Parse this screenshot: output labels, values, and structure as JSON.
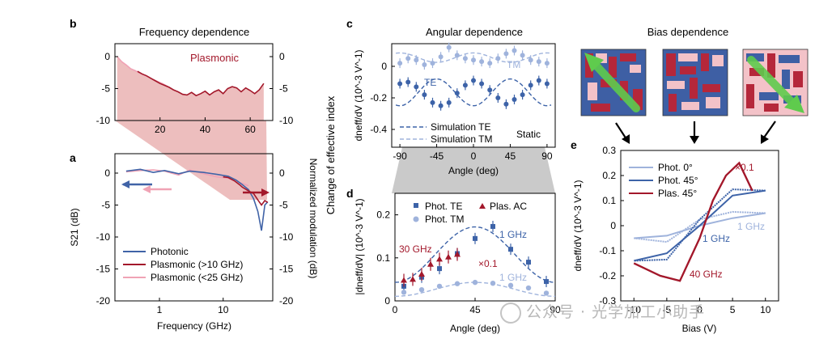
{
  "colors": {
    "photonic": "#4063a7",
    "plasmonic": "#a3182b",
    "plasmonic_light": "#f0a3b5",
    "te": "#3d63a8",
    "tm": "#9fb3dc",
    "shade": "#e7a8a8",
    "axis": "#000000"
  },
  "watermark": "公众号 · 光学加工小助手",
  "chart_data": [
    {
      "id": "b",
      "type": "line",
      "panel_label": "b",
      "title": "Frequency dependence",
      "xlim": [
        0,
        70
      ],
      "xticks": [
        20,
        40,
        60
      ],
      "ylim": [
        -10,
        0
      ],
      "yticks": [
        0,
        -5,
        -10
      ],
      "right_yticks": [
        0,
        -5,
        -10
      ],
      "annotation": "Plasmonic",
      "series": [
        {
          "name": "Plasmonic (<25 GHz)",
          "x": [
            1,
            3,
            5,
            7,
            9,
            11,
            13,
            15,
            17,
            19,
            21,
            23,
            25
          ],
          "values": [
            0,
            -0.8,
            -1.3,
            -1.9,
            -2.2,
            -2.6,
            -2.9,
            -3.2,
            -3.6,
            -3.9,
            -4.2,
            -4.6,
            -5.0
          ]
        },
        {
          "name": "Plasmonic (>10 GHz)",
          "x": [
            10,
            12,
            14,
            16,
            18,
            20,
            22,
            24,
            26,
            28,
            30,
            32,
            34,
            36,
            38,
            40,
            42,
            44,
            46,
            48,
            50,
            52,
            54,
            56,
            58,
            60,
            62,
            64,
            66
          ],
          "values": [
            -2.3,
            -2.7,
            -3.0,
            -3.4,
            -3.8,
            -4.2,
            -4.5,
            -4.8,
            -5.2,
            -5.5,
            -5.9,
            -6.0,
            -5.6,
            -6.1,
            -5.8,
            -5.4,
            -6.0,
            -5.5,
            -5.2,
            -5.8,
            -5.0,
            -4.7,
            -4.9,
            -5.5,
            -4.9,
            -5.3,
            -5.8,
            -5.2,
            -4.2
          ]
        }
      ]
    },
    {
      "id": "a",
      "type": "line",
      "panel_label": "a",
      "xscale": "log",
      "xlim": [
        0.2,
        60
      ],
      "xticks": [
        1,
        10
      ],
      "xlabel": "Frequency (GHz)",
      "ylabel": "S21 (dB)",
      "right_ylabel": "Normalized modulation (dB)",
      "ylim": [
        -20,
        3
      ],
      "yticks": [
        0,
        -5,
        -10,
        -15,
        -20
      ],
      "right_yticks": [
        0,
        -5,
        -10,
        -15,
        -20
      ],
      "series": [
        {
          "name": "Photonic",
          "x": [
            0.3,
            0.5,
            0.8,
            1.2,
            2,
            3,
            5,
            8,
            12,
            16,
            20,
            25,
            30,
            35,
            40,
            45,
            50
          ],
          "values": [
            0.3,
            0.6,
            0.1,
            0.4,
            -0.1,
            0.3,
            0.1,
            -0.2,
            -0.5,
            -1.1,
            -1.8,
            -2.6,
            -4.0,
            -6.0,
            -9.0,
            -5.0,
            -4.5
          ]
        },
        {
          "name": "Plasmonic (>10 GHz)",
          "x": [
            10,
            12,
            15,
            18,
            20,
            25,
            30,
            35,
            40,
            45,
            50
          ],
          "values": [
            -0.6,
            -0.7,
            -1.2,
            -1.8,
            -2.2,
            -2.8,
            -3.2,
            -4.2,
            -5.0,
            -4.3,
            -4.6
          ]
        },
        {
          "name": "Plasmonic (<25 GHz)",
          "x": [
            0.3,
            0.5,
            0.8,
            1.2,
            2,
            3,
            5,
            8,
            12,
            16,
            20,
            25
          ],
          "values": [
            0.2,
            0.4,
            0.5,
            0.3,
            -0.3,
            0.5,
            -0.1,
            -0.6,
            -0.8,
            -1.3,
            -1.6,
            -2.0
          ]
        }
      ],
      "legend": {
        "placement": "bottom-left",
        "entries": [
          "Photonic",
          "Plasmonic (>10 GHz)",
          "Plasmonic (<25 GHz)"
        ]
      }
    },
    {
      "id": "c",
      "type": "scatter",
      "panel_label": "c",
      "title": "Angular dependence",
      "xlabel": "Angle (deg)",
      "ylabel": "dneff/dV (10^-3 V^-1)",
      "shared_ylabel": "Change of effective index",
      "xlim": [
        -100,
        100
      ],
      "xticks": [
        -90,
        -45,
        0,
        45,
        90
      ],
      "ylim": [
        -0.48,
        0.17
      ],
      "yticks": [
        0,
        -0.2,
        -0.4
      ],
      "labels": [
        "TE",
        "TM",
        "Static"
      ],
      "series": [
        {
          "name": "TE",
          "x": [
            -90,
            -80,
            -70,
            -60,
            -50,
            -40,
            -30,
            -20,
            -10,
            0,
            10,
            20,
            30,
            40,
            50,
            60,
            70,
            80,
            90
          ],
          "values": [
            -0.11,
            -0.1,
            -0.13,
            -0.18,
            -0.23,
            -0.25,
            -0.23,
            -0.17,
            -0.12,
            -0.09,
            -0.11,
            -0.15,
            -0.2,
            -0.24,
            -0.21,
            -0.18,
            -0.12,
            -0.09,
            -0.11
          ]
        },
        {
          "name": "TM",
          "x": [
            -90,
            -80,
            -70,
            -60,
            -50,
            -40,
            -30,
            -20,
            -10,
            0,
            10,
            20,
            30,
            40,
            50,
            60,
            70,
            80,
            90
          ],
          "values": [
            0.02,
            0.05,
            0.04,
            0.01,
            0.02,
            0.06,
            0.12,
            0.07,
            0.05,
            0.04,
            0.03,
            0.02,
            0.05,
            0.08,
            0.1,
            0.07,
            0.04,
            0.03,
            0.02
          ]
        },
        {
          "name": "Simulation TE",
          "type": "line",
          "amp": 0.085,
          "offset": -0.165
        },
        {
          "name": "Simulation TM",
          "type": "line",
          "amp": 0.03,
          "offset": 0.055
        }
      ],
      "legend": {
        "placement": "bottom-left",
        "entries": [
          "Simulation TE",
          "Simulation TM"
        ]
      }
    },
    {
      "id": "d",
      "type": "scatter",
      "panel_label": "d",
      "xlabel": "Angle (deg)",
      "ylabel": "|dneff/dV| (10^-3 V^-1)",
      "xlim": [
        0,
        90
      ],
      "xticks": [
        0,
        45,
        90
      ],
      "ylim": [
        0,
        0.25
      ],
      "yticks": [
        0,
        0.1,
        0.2
      ],
      "annotations": [
        "1 GHz",
        "30 GHz",
        "×0.1",
        "1 GHz"
      ],
      "series": [
        {
          "name": "Phot. TE",
          "marker": "square",
          "x": [
            5,
            15,
            25,
            35,
            45,
            55,
            65,
            75,
            85
          ],
          "values": [
            0.034,
            0.055,
            0.075,
            0.11,
            0.145,
            0.173,
            0.12,
            0.09,
            0.045
          ]
        },
        {
          "name": "Phot. TM",
          "marker": "circle",
          "x": [
            5,
            15,
            25,
            35,
            45,
            55,
            65,
            75,
            85
          ],
          "values": [
            0.02,
            0.026,
            0.034,
            0.04,
            0.043,
            0.041,
            0.036,
            0.03,
            0.018
          ]
        },
        {
          "name": "Plas. AC",
          "marker": "triangle",
          "x": [
            5,
            10,
            15,
            20,
            25,
            30,
            35
          ],
          "values": [
            0.048,
            0.05,
            0.062,
            0.085,
            0.097,
            0.102,
            0.108
          ]
        },
        {
          "name": "Simulation TE",
          "type": "line",
          "peak": 0.172
        },
        {
          "name": "Simulation TM",
          "type": "line",
          "peak": 0.043
        }
      ],
      "legend": {
        "placement": "top",
        "entries": [
          "Phot. TE",
          "Plas. AC",
          "Phot. TM"
        ]
      }
    },
    {
      "id": "e",
      "type": "line",
      "panel_label": "e",
      "title": "Bias dependence",
      "xlabel": "Bias (V)",
      "ylabel": "dneff/dV (10^-3 V^-1)",
      "xlim": [
        -12,
        12
      ],
      "xticks": [
        -10,
        -5,
        0,
        5,
        10
      ],
      "ylim": [
        -0.3,
        0.3
      ],
      "yticks": [
        0.3,
        0.2,
        0.1,
        0,
        -0.1,
        -0.2,
        -0.3
      ],
      "annotations": [
        "×0.1",
        "1 GHz",
        "1 GHz",
        "40 GHz"
      ],
      "series": [
        {
          "name": "Phot. 0°",
          "x": [
            -10,
            -5,
            0,
            5,
            10
          ],
          "values": [
            -0.05,
            -0.04,
            0.0,
            0.03,
            0.05
          ]
        },
        {
          "name": "Phot. 45°",
          "x": [
            -10,
            -5,
            0,
            5,
            10
          ],
          "values": [
            -0.14,
            -0.11,
            0.0,
            0.12,
            0.14
          ]
        },
        {
          "name": "Plas. 45°",
          "x": [
            -10,
            -6,
            -3,
            0,
            2,
            4,
            6,
            8
          ],
          "values": [
            -0.15,
            -0.2,
            -0.22,
            -0.05,
            0.1,
            0.2,
            0.25,
            0.14
          ]
        }
      ],
      "legend": {
        "placement": "top-left",
        "entries": [
          "Phot. 0°",
          "Phot. 45°",
          "Plas. 45°"
        ]
      }
    }
  ]
}
